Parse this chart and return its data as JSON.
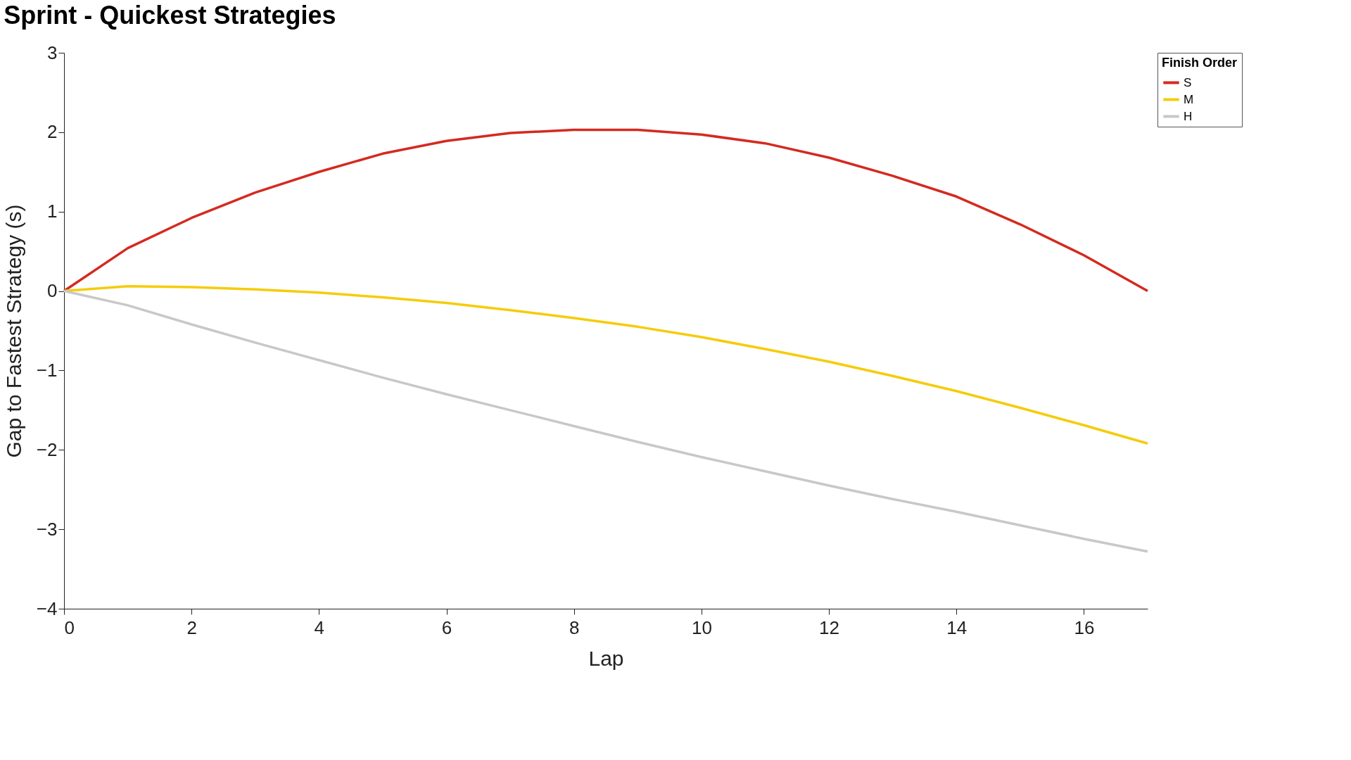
{
  "chart_data": {
    "type": "line",
    "title": "Sprint - Quickest Strategies",
    "xlabel": "Lap",
    "ylabel": "Gap to Fastest Strategy (s)",
    "legend_title": "Finish Order",
    "x": [
      0,
      1,
      2,
      3,
      4,
      5,
      6,
      7,
      8,
      9,
      10,
      11,
      12,
      13,
      14,
      15,
      16,
      17
    ],
    "series": [
      {
        "name": "S",
        "color": "#d42a20",
        "values": [
          0,
          0.54,
          0.92,
          1.24,
          1.5,
          1.73,
          1.89,
          1.99,
          2.03,
          2.03,
          1.97,
          1.86,
          1.68,
          1.45,
          1.19,
          0.84,
          0.45,
          0
        ]
      },
      {
        "name": "M",
        "color": "#f5cc0a",
        "values": [
          0,
          0.06,
          0.05,
          0.02,
          -0.02,
          -0.08,
          -0.15,
          -0.24,
          -0.34,
          -0.45,
          -0.58,
          -0.73,
          -0.89,
          -1.07,
          -1.26,
          -1.47,
          -1.69,
          -1.92
        ]
      },
      {
        "name": "H",
        "color": "#c8c8c8",
        "values": [
          0,
          -0.18,
          -0.42,
          -0.65,
          -0.87,
          -1.09,
          -1.3,
          -1.5,
          -1.7,
          -1.9,
          -2.09,
          -2.27,
          -2.45,
          -2.62,
          -2.78,
          -2.95,
          -3.12,
          -3.28
        ]
      }
    ],
    "xlim": [
      0,
      17
    ],
    "xticks": [
      0,
      2,
      4,
      6,
      8,
      10,
      12,
      14,
      16
    ],
    "ylim": [
      -4,
      3
    ],
    "yticks": [
      -4,
      -3,
      -2,
      -1,
      0,
      1,
      2,
      3
    ],
    "grid": false,
    "legend": "right",
    "marker": "none",
    "line_style": "solid"
  }
}
